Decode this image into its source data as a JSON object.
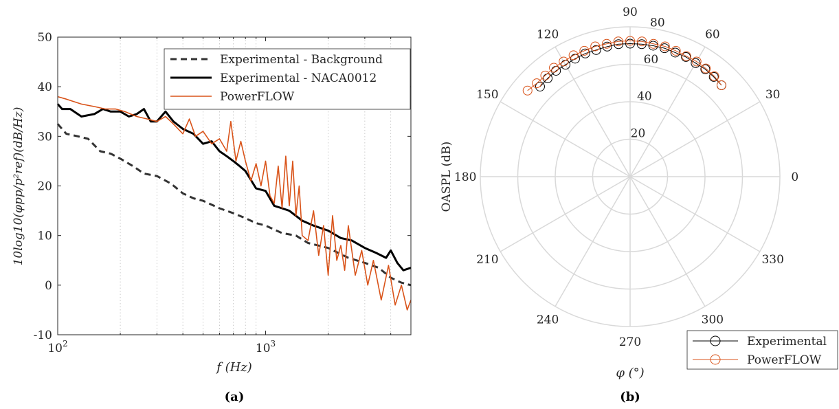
{
  "panels": {
    "a_label": "(a)",
    "b_label": "(b)"
  },
  "colors": {
    "experimental": "#000000",
    "background": "#333333",
    "powerflow": "#D95319",
    "grid": "#d9d9d9"
  },
  "chart_data": [
    {
      "type": "line",
      "panel": "(a)",
      "xlabel": "f (Hz)",
      "ylabel": "10log10(φpp/p²ref)(dB/Hz)",
      "xscale": "log",
      "xlim": [
        100,
        5000
      ],
      "ylim": [
        -10,
        50
      ],
      "yticks": [
        -10,
        0,
        10,
        20,
        30,
        40,
        50
      ],
      "xticks": [
        "10^2",
        "10^3"
      ],
      "grid": "x-minor-dotted",
      "legend": "top-right",
      "series": [
        {
          "name": "Experimental - Background",
          "style": "dashed",
          "x": [
            100,
            110,
            125,
            140,
            160,
            180,
            200,
            230,
            260,
            300,
            350,
            400,
            450,
            500,
            600,
            700,
            800,
            900,
            1000,
            1200,
            1400,
            1600,
            2000,
            2500,
            3000,
            3500,
            4000,
            4500,
            5000
          ],
          "y": [
            32.5,
            30.5,
            30,
            29.5,
            27,
            26.5,
            25.5,
            24,
            22.5,
            22,
            20.5,
            18.5,
            17.5,
            17,
            15.5,
            14.5,
            13.5,
            12.5,
            12,
            10.5,
            10,
            8.5,
            7.5,
            5.5,
            4.5,
            3.5,
            1.5,
            0.5,
            0
          ]
        },
        {
          "name": "Experimental - NACA0012",
          "style": "solid",
          "x": [
            100,
            105,
            115,
            130,
            150,
            165,
            180,
            200,
            220,
            240,
            260,
            280,
            300,
            330,
            360,
            400,
            450,
            500,
            550,
            600,
            650,
            700,
            750,
            800,
            900,
            1000,
            1100,
            1200,
            1300,
            1500,
            1700,
            2000,
            2300,
            2600,
            3000,
            3400,
            3800,
            4000,
            4300,
            4600,
            5000
          ],
          "y": [
            36.5,
            35.5,
            35.5,
            34,
            34.5,
            35.5,
            35,
            35,
            34,
            34.5,
            35.5,
            33,
            33,
            35,
            33,
            31.5,
            30.5,
            28.5,
            29,
            27,
            26,
            25,
            24,
            23,
            19.5,
            19,
            16,
            15.5,
            15,
            13,
            12,
            11,
            9.5,
            9,
            7.5,
            6.5,
            5.5,
            7,
            4.5,
            3,
            3.5
          ]
        },
        {
          "name": "PowerFLOW",
          "style": "solid-thin",
          "x": [
            100,
            110,
            130,
            150,
            170,
            190,
            210,
            240,
            270,
            300,
            330,
            360,
            400,
            430,
            460,
            500,
            550,
            600,
            650,
            680,
            720,
            760,
            800,
            850,
            900,
            950,
            1000,
            1050,
            1100,
            1150,
            1200,
            1250,
            1300,
            1350,
            1400,
            1450,
            1500,
            1600,
            1700,
            1800,
            1900,
            2000,
            2100,
            2200,
            2300,
            2400,
            2500,
            2700,
            2900,
            3100,
            3300,
            3600,
            3900,
            4200,
            4500,
            4800,
            5000
          ],
          "y": [
            38,
            37.5,
            36.5,
            36,
            35.5,
            35.5,
            35,
            34,
            33.5,
            33,
            34,
            32.5,
            30.5,
            33.5,
            30,
            31,
            28.5,
            29.5,
            27,
            33,
            25,
            29,
            25,
            21,
            24.5,
            20,
            25,
            18,
            16.5,
            24,
            15.5,
            26,
            16,
            25,
            14,
            20,
            10,
            9,
            15,
            6,
            12,
            2,
            14,
            5,
            8,
            3,
            12,
            2,
            7,
            0,
            5,
            -3,
            4,
            -4,
            0,
            -5,
            -3
          ]
        }
      ]
    },
    {
      "type": "scatter",
      "subtype": "polar",
      "panel": "(b)",
      "xlabel": "φ (°)",
      "ylabel": "OASPL (dB)",
      "rlim": [
        0,
        80
      ],
      "rticks": [
        20,
        40,
        60,
        80
      ],
      "angle_ticks": [
        0,
        30,
        60,
        90,
        120,
        150,
        180,
        210,
        240,
        270,
        300,
        330
      ],
      "legend": "bottom-right",
      "series": [
        {
          "name": "Experimental",
          "marker": "circle",
          "theta": [
            45,
            50,
            55,
            60,
            65,
            70,
            75,
            80,
            85,
            90,
            95,
            100,
            105,
            110,
            115,
            120,
            125,
            130,
            135
          ],
          "r": [
            69,
            69.5,
            70,
            70,
            70.5,
            70.5,
            71,
            71,
            71,
            71,
            71,
            70.5,
            70,
            70,
            69.5,
            69,
            69,
            68.5,
            68
          ]
        },
        {
          "name": "PowerFLOW",
          "marker": "circle",
          "theta": [
            45,
            50,
            55,
            60,
            65,
            70,
            75,
            80,
            85,
            90,
            95,
            100,
            105,
            110,
            115,
            120,
            125,
            130,
            135,
            140
          ],
          "r": [
            69,
            70,
            70.5,
            71,
            71,
            71.5,
            72,
            72,
            72.5,
            72.5,
            72.5,
            72,
            72,
            71.5,
            71.5,
            71,
            71,
            70.5,
            70.5,
            71.5
          ]
        }
      ]
    }
  ]
}
